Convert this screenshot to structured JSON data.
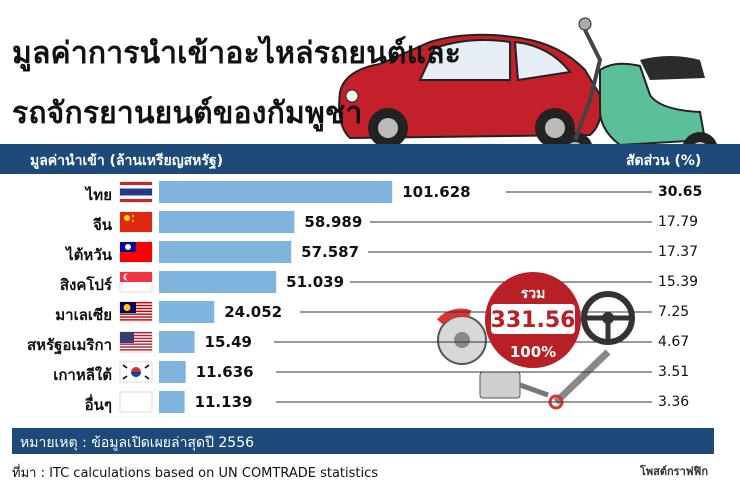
{
  "title_line1": "มูลค่าการนำเข้าอะไหล่รถยนต์และ",
  "title_line2": "รถจักรยานยนต์ของกัมพูชา",
  "header": {
    "value_label": "มูลค่านำเข้า (ล้านเหรียญสหรัฐ)",
    "share_label": "สัดส่วน (%)"
  },
  "total": {
    "label": "รวม",
    "value": "331.56",
    "percent": "100%"
  },
  "note": "หมายเหตุ : ข้อมูลเปิดเผยล่าสุดปี 2556",
  "source": "ที่มา : ITC calculations based on UN COMTRADE statistics",
  "credit": "โพสต์กราฟฟิก",
  "colors": {
    "bar": "#7fb4de",
    "header_bg": "#1d4a78",
    "badge": "#b92025",
    "car": "#c3202a",
    "scooter": "#5bbf9a"
  },
  "chart_data": {
    "type": "bar",
    "orientation": "horizontal",
    "categories": [
      "ไทย",
      "จีน",
      "ไต้หวัน",
      "สิงคโปร์",
      "มาเลเซีย",
      "สหรัฐอเมริกา",
      "เกาหลีใต้",
      "อื่นๆ"
    ],
    "series": [
      {
        "values": [
          101.628,
          58.989,
          57.587,
          51.039,
          24.052,
          15.49,
          11.636,
          11.139
        ],
        "labels": [
          "101.628",
          "58.989",
          "57.587",
          "51.039",
          "24.052",
          "15.49",
          "11.636",
          "11.139"
        ]
      },
      {
        "values": [
          30.65,
          17.79,
          17.37,
          15.39,
          7.25,
          4.67,
          3.51,
          3.36
        ],
        "labels": [
          "30.65",
          "17.79",
          "17.37",
          "15.39",
          "7.25",
          "4.67",
          "3.51",
          "3.36"
        ]
      }
    ],
    "flags": [
      "thailand-flag",
      "china-flag",
      "taiwan-flag",
      "singapore-flag",
      "malaysia-flag",
      "usa-flag",
      "south-korea-flag",
      "other-flag"
    ],
    "xlim": [
      0,
      105
    ]
  }
}
